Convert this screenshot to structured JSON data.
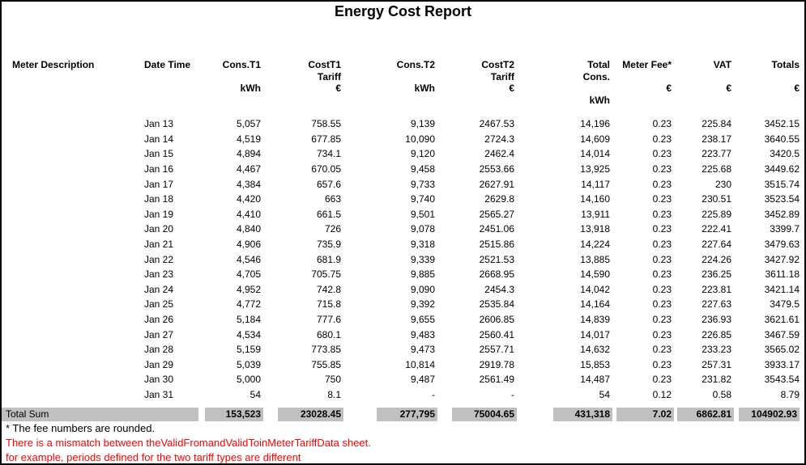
{
  "title": "Energy Cost Report",
  "colors": {
    "band": "#C0C0C0",
    "warning": "#FF0000",
    "text": "#000000"
  },
  "table": {
    "columns": [
      {
        "name": "meter-description",
        "label1": "Meter Description",
        "label2": "",
        "unit": "",
        "unit2": ""
      },
      {
        "name": "date-time",
        "label1": "Date Time",
        "label2": "",
        "unit": "",
        "unit2": ""
      },
      {
        "name": "cons-t1",
        "label1": "Cons.T1",
        "label2": "",
        "unit": "kWh",
        "unit2": ""
      },
      {
        "name": "cost-t1-tariff",
        "label1": "CostT1",
        "label2": "Tariff",
        "unit": "€",
        "unit2": ""
      },
      {
        "name": "cons-t2",
        "label1": "Cons.T2",
        "label2": "",
        "unit": "kWh",
        "unit2": ""
      },
      {
        "name": "cost-t2-tariff",
        "label1": "CostT2",
        "label2": "Tariff",
        "unit": "€",
        "unit2": ""
      },
      {
        "name": "total-cons",
        "label1": "Total",
        "label2": "Cons.",
        "unit": "",
        "unit2": "kWh"
      },
      {
        "name": "meter-fee",
        "label1": "Meter Fee*",
        "label2": "",
        "unit": "€",
        "unit2": ""
      },
      {
        "name": "vat",
        "label1": "VAT",
        "label2": "",
        "unit": "€",
        "unit2": ""
      },
      {
        "name": "totals",
        "label1": "Totals",
        "label2": "",
        "unit": "€",
        "unit2": ""
      }
    ],
    "rows": [
      [
        "",
        "Jan 13",
        "5,057",
        "758.55",
        "9,139",
        "2467.53",
        "14,196",
        "0.23",
        "225.84",
        "3452.15"
      ],
      [
        "",
        "Jan 14",
        "4,519",
        "677.85",
        "10,090",
        "2724.3",
        "14,609",
        "0.23",
        "238.17",
        "3640.55"
      ],
      [
        "",
        "Jan 15",
        "4,894",
        "734.1",
        "9,120",
        "2462.4",
        "14,014",
        "0.23",
        "223.77",
        "3420.5"
      ],
      [
        "",
        "Jan 16",
        "4,467",
        "670.05",
        "9,458",
        "2553.66",
        "13,925",
        "0.23",
        "225.68",
        "3449.62"
      ],
      [
        "",
        "Jan 17",
        "4,384",
        "657.6",
        "9,733",
        "2627.91",
        "14,117",
        "0.23",
        "230",
        "3515.74"
      ],
      [
        "",
        "Jan 18",
        "4,420",
        "663",
        "9,740",
        "2629.8",
        "14,160",
        "0.23",
        "230.51",
        "3523.54"
      ],
      [
        "",
        "Jan 19",
        "4,410",
        "661.5",
        "9,501",
        "2565.27",
        "13,911",
        "0.23",
        "225.89",
        "3452.89"
      ],
      [
        "",
        "Jan 20",
        "4,840",
        "726",
        "9,078",
        "2451.06",
        "13,918",
        "0.23",
        "222.41",
        "3399.7"
      ],
      [
        "",
        "Jan 21",
        "4,906",
        "735.9",
        "9,318",
        "2515.86",
        "14,224",
        "0.23",
        "227.64",
        "3479.63"
      ],
      [
        "",
        "Jan 22",
        "4,546",
        "681.9",
        "9,339",
        "2521.53",
        "13,885",
        "0.23",
        "224.26",
        "3427.92"
      ],
      [
        "",
        "Jan 23",
        "4,705",
        "705.75",
        "9,885",
        "2668.95",
        "14,590",
        "0.23",
        "236.25",
        "3611.18"
      ],
      [
        "",
        "Jan 24",
        "4,952",
        "742.8",
        "9,090",
        "2454.3",
        "14,042",
        "0.23",
        "223.81",
        "3421.14"
      ],
      [
        "",
        "Jan 25",
        "4,772",
        "715.8",
        "9,392",
        "2535.84",
        "14,164",
        "0.23",
        "227.63",
        "3479.5"
      ],
      [
        "",
        "Jan 26",
        "5,184",
        "777.6",
        "9,655",
        "2606.85",
        "14,839",
        "0.23",
        "236.93",
        "3621.61"
      ],
      [
        "",
        "Jan 27",
        "4,534",
        "680.1",
        "9,483",
        "2560.41",
        "14,017",
        "0.23",
        "226.85",
        "3467.59"
      ],
      [
        "",
        "Jan 28",
        "5,159",
        "773.85",
        "9,473",
        "2557.71",
        "14,632",
        "0.23",
        "233.23",
        "3565.02"
      ],
      [
        "",
        "Jan 29",
        "5,039",
        "755.85",
        "10,814",
        "2919.78",
        "15,853",
        "0.23",
        "257.31",
        "3933.17"
      ],
      [
        "",
        "Jan 30",
        "5,000",
        "750",
        "9,487",
        "2561.49",
        "14,487",
        "0.23",
        "231.82",
        "3543.54"
      ],
      [
        "",
        "Jan 31",
        "54",
        "8.1",
        "-",
        "-",
        "54",
        "0.12",
        "0.58",
        "8.79"
      ]
    ],
    "total": {
      "label": "Total Sum",
      "values": [
        "153,523",
        "23028.45",
        "277,795",
        "75004.65",
        "431,318",
        "7.02",
        "6862.81",
        "104902.93"
      ]
    }
  },
  "footnotes": {
    "note": "* The fee numbers are rounded.",
    "warning_line1": "There is a mismatch between theValidFromandValidToinMeterTariffData sheet.",
    "warning_line2": "for example, periods defined for the two tariff types are different"
  }
}
